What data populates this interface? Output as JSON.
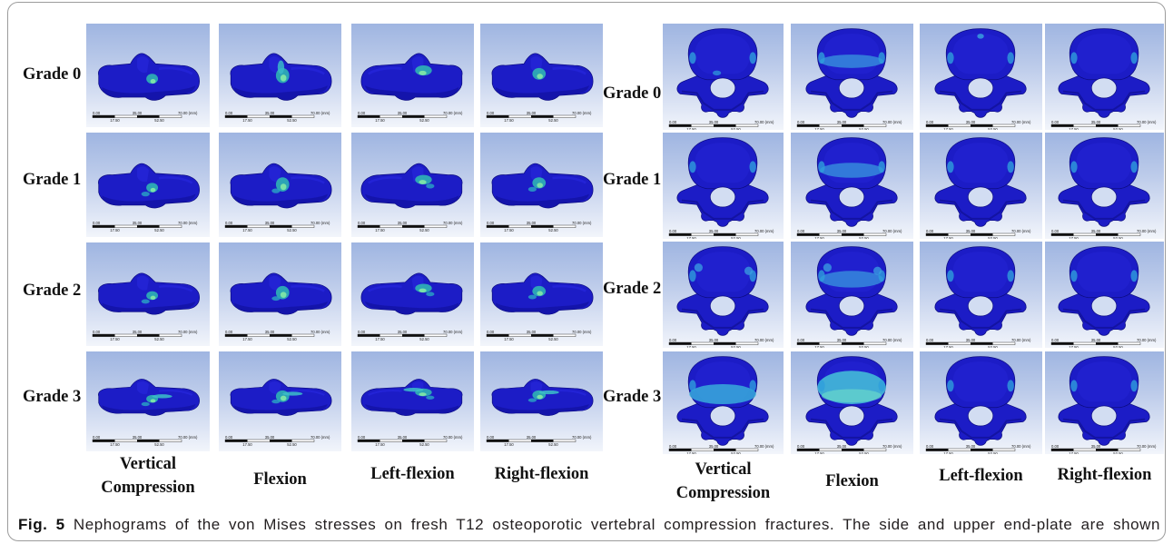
{
  "figure": {
    "left_panel": {
      "grades": [
        "Grade 0",
        "Grade 1",
        "Grade 2",
        "Grade 3"
      ],
      "loads": [
        "Vertical Compression",
        "Flexion",
        "Left-flexion",
        "Right-flexion"
      ]
    },
    "right_panel": {
      "grades": [
        "Grade 0",
        "Grade 1",
        "Grade 2",
        "Grade 3"
      ],
      "loads": [
        "Vertical Compression",
        "Flexion",
        "Left-flexion",
        "Right-flexion"
      ]
    },
    "scale_bar": {
      "top": [
        "0.00",
        "35.00",
        "70.00 (mm)"
      ],
      "bottom": [
        "17.50",
        "52.50"
      ]
    },
    "caption": {
      "label": "Fig. 5",
      "text": "Nephograms of the von Mises stresses on fresh T12 osteoporotic vertebral compression fractures. The side and upper end-plate are shown"
    },
    "colors": {
      "bone": "#1c1cc6",
      "stress_low": "#2fb4b4",
      "stress_high": "#7fe6a8"
    }
  }
}
